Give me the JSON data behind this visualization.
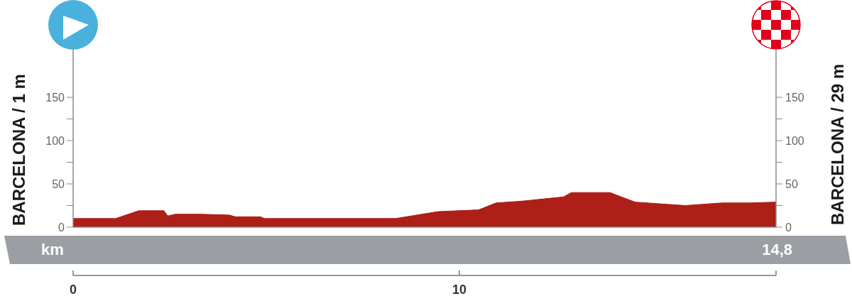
{
  "chart_data": {
    "type": "area",
    "xlabel": "km",
    "ylabel": "BARCELONA / 1 m",
    "y2label": "BARCELONA / 29 m",
    "annotations": [
      "14,8"
    ],
    "x": [
      0,
      1.1,
      1.7,
      2.35,
      2.45,
      2.65,
      3.3,
      4.05,
      4.2,
      4.85,
      4.95,
      8.35,
      9.45,
      10.5,
      10.95,
      11.6,
      12.7,
      12.9,
      13.9,
      14.55,
      15.85,
      16.8,
      17.55,
      18.2
    ],
    "values": [
      10,
      10,
      19,
      19,
      13,
      15,
      15,
      14,
      12,
      12,
      10,
      10,
      18,
      20,
      28,
      30,
      35,
      40,
      40,
      29,
      25,
      28,
      28,
      29
    ],
    "color": "#ad1f17",
    "xlim": [
      0,
      18.2
    ],
    "xticks": [
      0,
      10,
      {
        "value": 18.2,
        "label": null
      }
    ],
    "ylim": [
      0,
      205
    ],
    "yticks": [
      0,
      {
        "value": 25,
        "label": null
      },
      50,
      {
        "value": 75,
        "label": null
      },
      100,
      {
        "value": 125,
        "label": null
      },
      150
    ],
    "y2lim": [
      0,
      205
    ],
    "y2ticks": [
      0,
      {
        "value": 25,
        "label": null
      },
      50,
      {
        "value": 75,
        "label": null
      },
      100,
      {
        "value": 125,
        "label": null
      },
      150
    ]
  }
}
